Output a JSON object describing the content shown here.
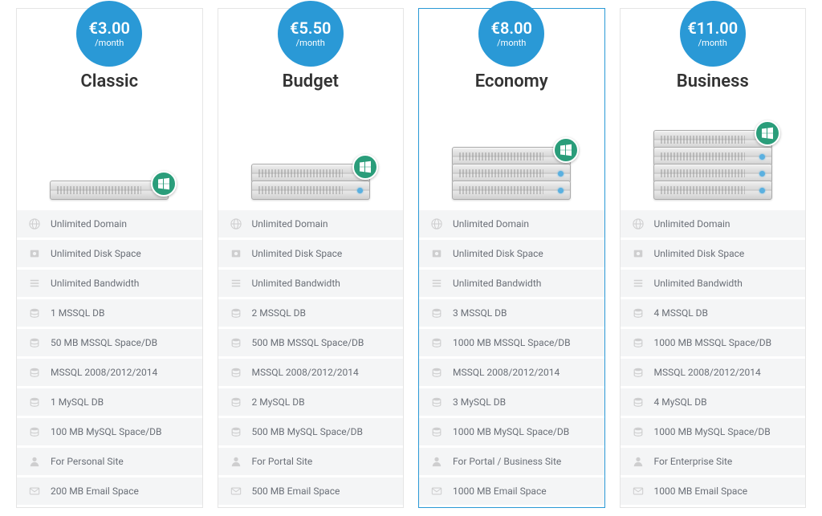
{
  "colors": {
    "accent": "#2a99d6",
    "badge": "#2a9d7a",
    "text_dark": "#333333",
    "text_muted": "#6a6f77",
    "row_bg": "#f4f5f6",
    "border": "#e5e5e5"
  },
  "feature_icons": [
    "globe",
    "disk",
    "bandwidth",
    "database",
    "database",
    "database",
    "database",
    "database",
    "user",
    "mail"
  ],
  "plans": [
    {
      "name": "Classic",
      "price": "€3.00",
      "period": "/month",
      "server_units": 1,
      "featured": false,
      "features": [
        "Unlimited Domain",
        "Unlimited Disk Space",
        "Unlimited Bandwidth",
        "1 MSSQL DB",
        "50 MB MSSQL Space/DB",
        "MSSQL 2008/2012/2014",
        "1 MySQL DB",
        "100 MB MySQL Space/DB",
        "For Personal Site",
        "200 MB Email Space"
      ]
    },
    {
      "name": "Budget",
      "price": "€5.50",
      "period": "/month",
      "server_units": 2,
      "featured": false,
      "features": [
        "Unlimited Domain",
        "Unlimited Disk Space",
        "Unlimited Bandwidth",
        "2 MSSQL DB",
        "500 MB MSSQL Space/DB",
        "MSSQL 2008/2012/2014",
        "2 MySQL DB",
        "500 MB MySQL Space/DB",
        "For Portal Site",
        "500 MB Email Space"
      ]
    },
    {
      "name": "Economy",
      "price": "€8.00",
      "period": "/month",
      "server_units": 3,
      "featured": true,
      "features": [
        "Unlimited Domain",
        "Unlimited Disk Space",
        "Unlimited Bandwidth",
        "3 MSSQL DB",
        "1000 MB MSSQL Space/DB",
        "MSSQL 2008/2012/2014",
        "3 MySQL DB",
        "1000 MB MySQL Space/DB",
        "For Portal / Business Site",
        "1000 MB Email Space"
      ]
    },
    {
      "name": "Business",
      "price": "€11.00",
      "period": "/month",
      "server_units": 4,
      "featured": false,
      "features": [
        "Unlimited Domain",
        "Unlimited Disk Space",
        "Unlimited Bandwidth",
        "4 MSSQL DB",
        "1000 MB MSSQL Space/DB",
        "MSSQL 2008/2012/2014",
        "4 MySQL DB",
        "1000 MB MySQL Space/DB",
        "For Enterprise Site",
        "1000 MB Email Space"
      ]
    }
  ]
}
